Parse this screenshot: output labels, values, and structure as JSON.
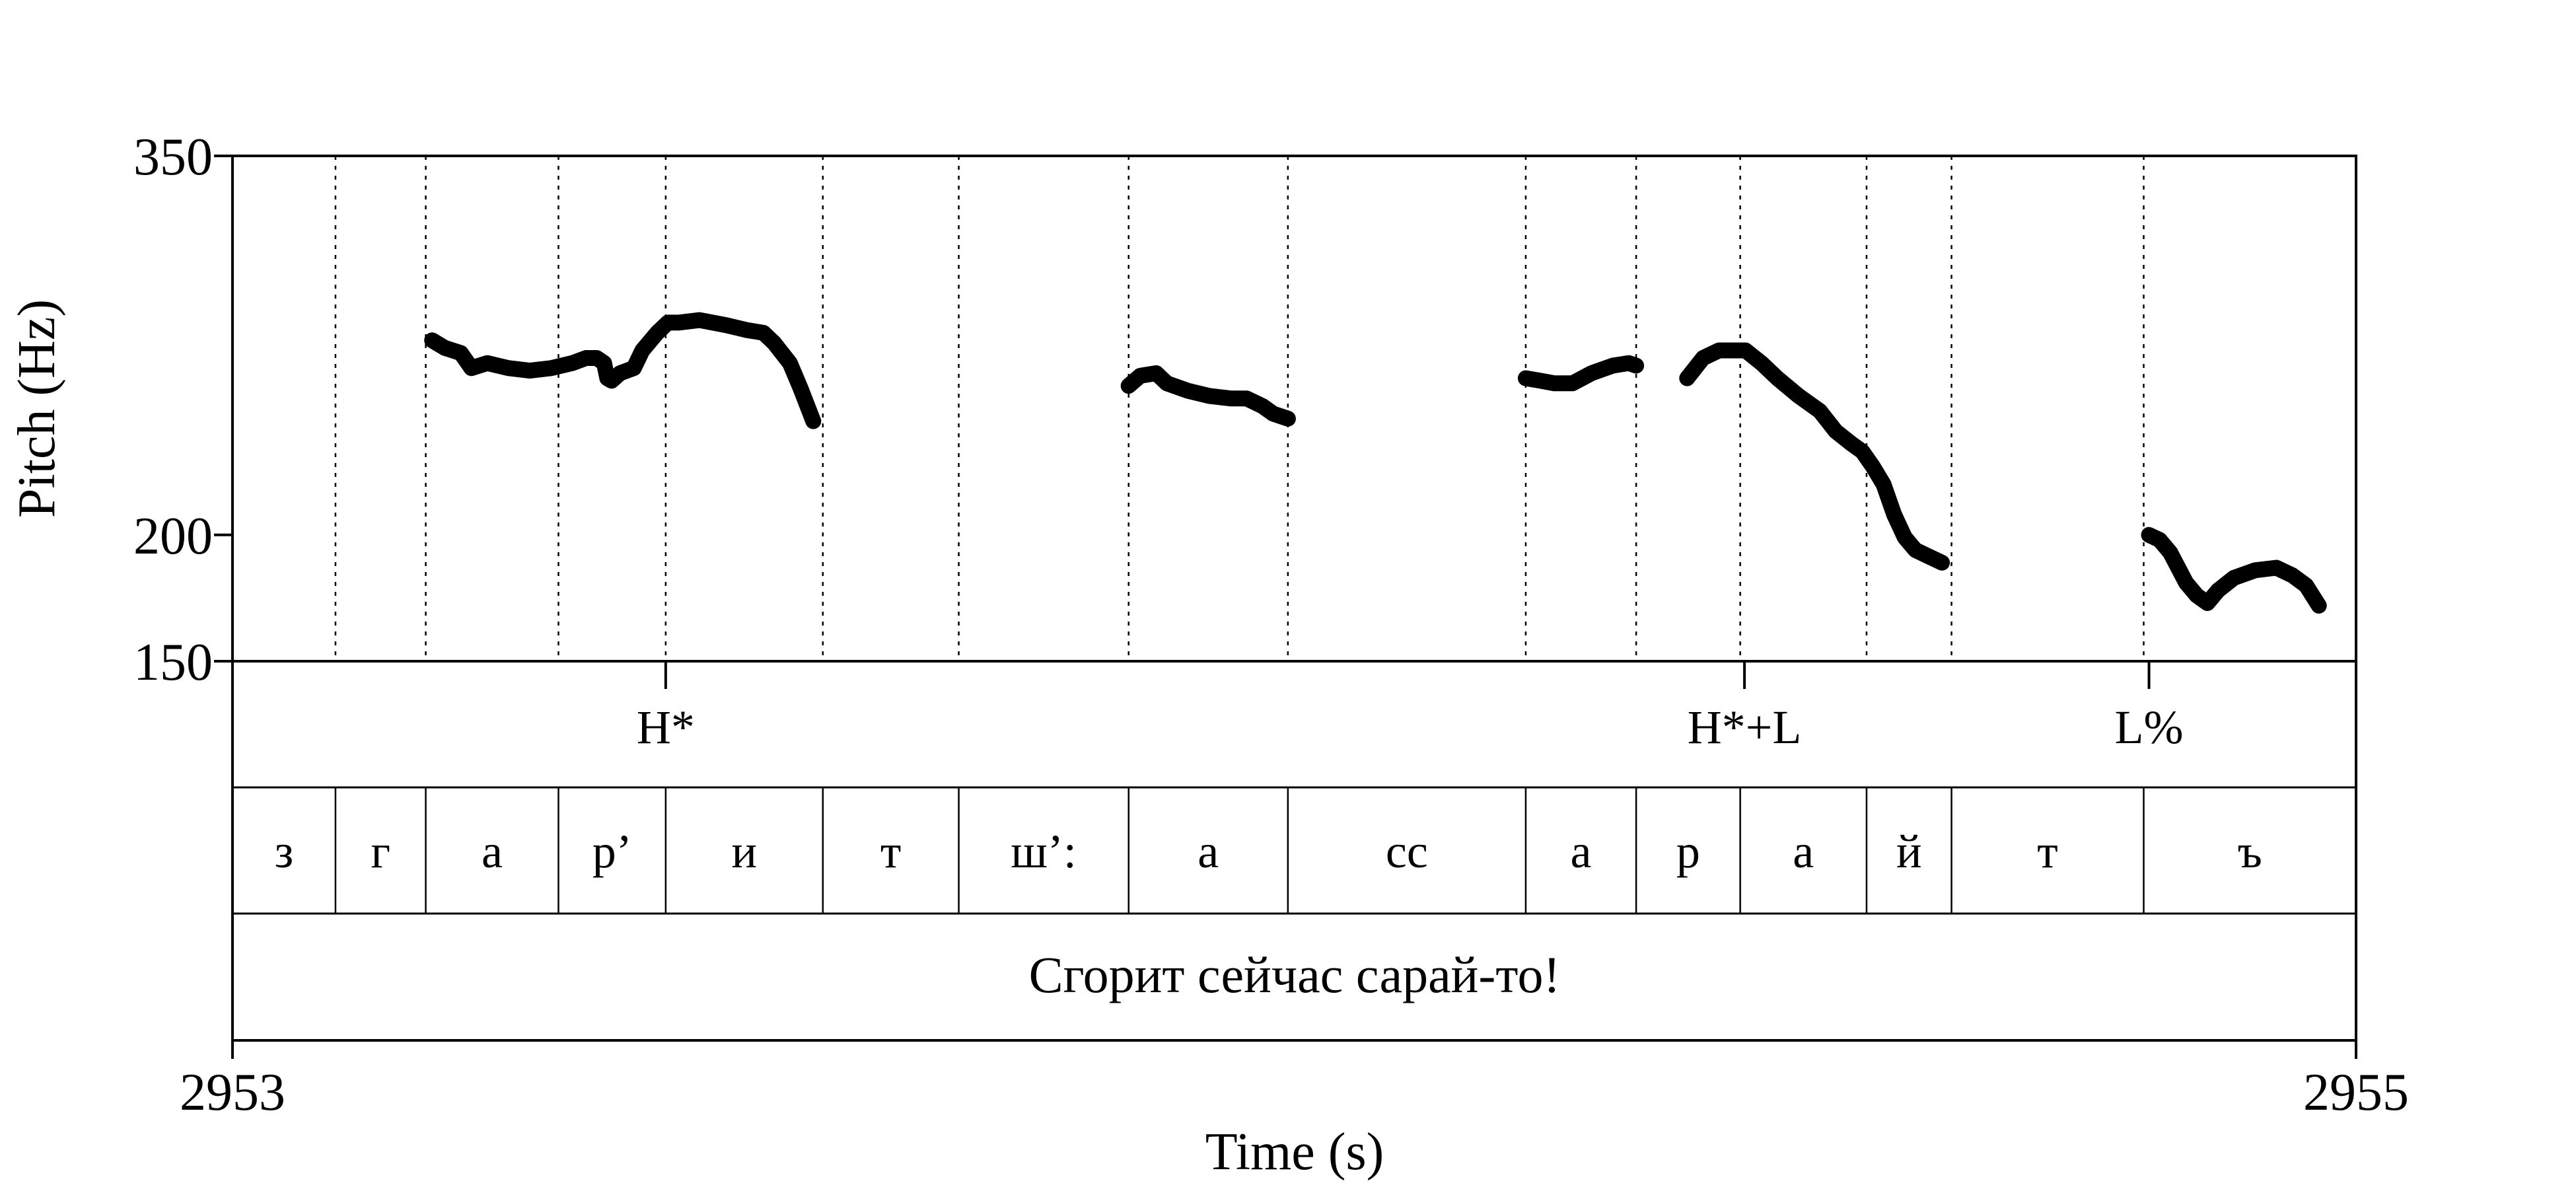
{
  "chart_data": {
    "type": "line",
    "title": "",
    "xlabel": "Time (s)",
    "ylabel": "Pitch (Hz)",
    "xlim": [
      2953,
      2955
    ],
    "ylim": [
      150,
      350
    ],
    "x_ticks": [
      "2953",
      "2955"
    ],
    "y_ticks": [
      {
        "value": 350,
        "label": "350"
      },
      {
        "value": 200,
        "label": "200"
      },
      {
        "value": 150,
        "label": "150"
      }
    ],
    "tone_tier": [
      {
        "time": 2953.408,
        "label": "H*"
      },
      {
        "time": 2954.424,
        "label": "H*+L"
      },
      {
        "time": 2954.805,
        "label": "L%"
      }
    ],
    "segment_boundaries": [
      2953.0,
      2953.097,
      2953.182,
      2953.307,
      2953.408,
      2953.556,
      2953.684,
      2953.844,
      2953.994,
      2954.218,
      2954.322,
      2954.42,
      2954.539,
      2954.619,
      2954.8,
      2955.0
    ],
    "segments": [
      "з",
      "г",
      "а",
      "р’",
      "и",
      "т",
      "ш’:",
      "а",
      "сс",
      "а",
      "р",
      "а",
      "й",
      "т",
      "ъ"
    ],
    "sentence": "Сгорит сейчас сарай-то!",
    "series": [
      {
        "values": [
          [
            [
              2953.188,
              277
            ],
            [
              2953.2,
              274
            ],
            [
              2953.215,
              272
            ],
            [
              2953.225,
              266
            ],
            [
              2953.24,
              268
            ],
            [
              2953.26,
              266
            ],
            [
              2953.28,
              265
            ],
            [
              2953.3,
              266
            ],
            [
              2953.32,
              268
            ],
            [
              2953.333,
              270
            ],
            [
              2953.343,
              270
            ],
            [
              2953.35,
              268
            ],
            [
              2953.353,
              262
            ],
            [
              2953.357,
              261
            ],
            [
              2953.365,
              264
            ],
            [
              2953.378,
              266
            ],
            [
              2953.386,
              273
            ],
            [
              2953.4,
              280
            ],
            [
              2953.41,
              284
            ],
            [
              2953.42,
              284
            ],
            [
              2953.44,
              285
            ],
            [
              2953.465,
              283
            ],
            [
              2953.485,
              281
            ],
            [
              2953.5,
              280
            ],
            [
              2953.51,
              276
            ],
            [
              2953.525,
              268
            ],
            [
              2953.535,
              258
            ],
            [
              2953.547,
              245
            ]
          ],
          [
            [
              2953.844,
              259
            ],
            [
              2953.855,
              263
            ],
            [
              2953.87,
              264
            ],
            [
              2953.88,
              260
            ],
            [
              2953.9,
              257
            ],
            [
              2953.92,
              255
            ],
            [
              2953.94,
              254
            ],
            [
              2953.955,
              254
            ],
            [
              2953.97,
              251
            ],
            [
              2953.98,
              248
            ],
            [
              2953.994,
              246
            ]
          ],
          [
            [
              2954.218,
              262
            ],
            [
              2954.232,
              261
            ],
            [
              2954.245,
              260
            ],
            [
              2954.262,
              260
            ],
            [
              2954.28,
              264
            ],
            [
              2954.3,
              267
            ],
            [
              2954.315,
              268
            ],
            [
              2954.322,
              267
            ]
          ],
          [
            [
              2954.37,
              262
            ],
            [
              2954.385,
              270
            ],
            [
              2954.4,
              273
            ],
            [
              2954.425,
              273
            ],
            [
              2954.44,
              268
            ],
            [
              2954.455,
              262
            ],
            [
              2954.475,
              255
            ],
            [
              2954.495,
              249
            ],
            [
              2954.51,
              241
            ],
            [
              2954.525,
              236
            ],
            [
              2954.535,
              233
            ],
            [
              2954.545,
              227
            ],
            [
              2954.555,
              220
            ],
            [
              2954.565,
              208
            ],
            [
              2954.575,
              199
            ],
            [
              2954.585,
              194
            ],
            [
              2954.595,
              192
            ],
            [
              2954.61,
              189
            ]
          ],
          [
            [
              2954.805,
              200
            ],
            [
              2954.815,
              198
            ],
            [
              2954.825,
              193
            ],
            [
              2954.84,
              181
            ],
            [
              2954.85,
              176
            ],
            [
              2954.86,
              173
            ],
            [
              2954.87,
              178
            ],
            [
              2954.885,
              183
            ],
            [
              2954.905,
              186
            ],
            [
              2954.925,
              187
            ],
            [
              2954.94,
              184
            ],
            [
              2954.953,
              180
            ],
            [
              2954.965,
              172
            ]
          ]
        ]
      }
    ]
  }
}
